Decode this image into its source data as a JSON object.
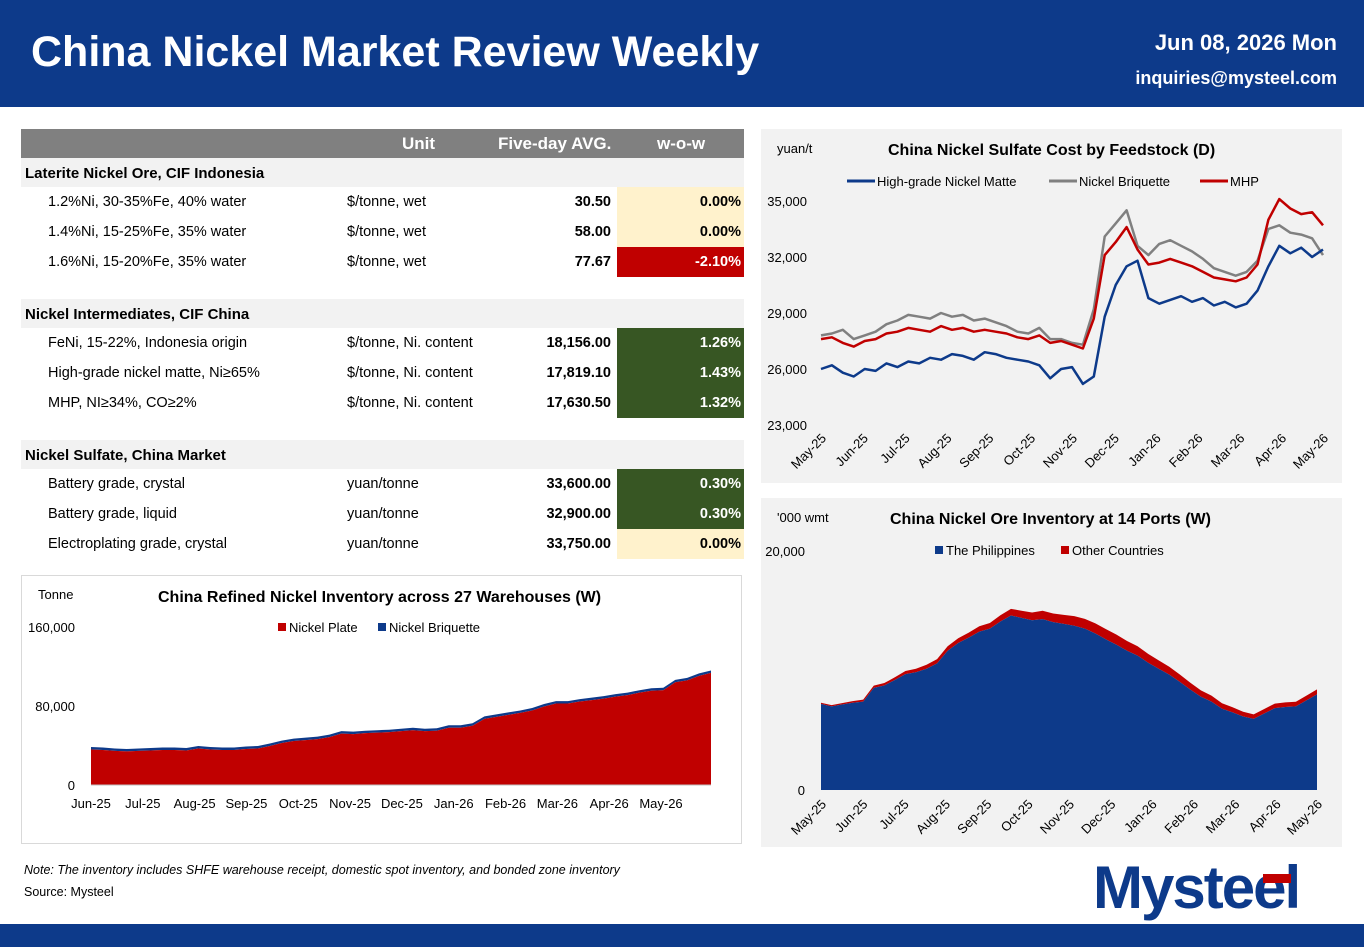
{
  "header": {
    "title": "China Nickel Market Review Weekly",
    "date": "Jun 08, 2026 Mon",
    "email": "inquiries@mysteel.com"
  },
  "table": {
    "columns": {
      "unit": "Unit",
      "avg": "Five-day AVG.",
      "wow": "w-o-w"
    },
    "sections": [
      {
        "title": "Laterite Nickel Ore, CIF Indonesia",
        "rows": [
          {
            "name": "1.2%Ni, 30-35%Fe, 40% water",
            "unit": "$/tonne, wet",
            "avg": "30.50",
            "wow": "0.00%",
            "status": "flat"
          },
          {
            "name": "1.4%Ni, 15-25%Fe, 35% water",
            "unit": "$/tonne, wet",
            "avg": "58.00",
            "wow": "0.00%",
            "status": "flat"
          },
          {
            "name": "1.6%Ni, 15-20%Fe, 35% water",
            "unit": "$/tonne, wet",
            "avg": "77.67",
            "wow": "-2.10%",
            "status": "down"
          }
        ]
      },
      {
        "title": "Nickel Intermediates, CIF China",
        "rows": [
          {
            "name": "FeNi, 15-22%, Indonesia origin",
            "unit": "$/tonne, Ni. content",
            "avg": "18,156.00",
            "wow": "1.26%",
            "status": "up"
          },
          {
            "name": "High-grade nickel matte, Ni≥65%",
            "unit": "$/tonne, Ni. content",
            "avg": "17,819.10",
            "wow": "1.43%",
            "status": "up"
          },
          {
            "name": "MHP, NI≥34%, CO≥2%",
            "unit": "$/tonne, Ni. content",
            "avg": "17,630.50",
            "wow": "1.32%",
            "status": "up"
          }
        ]
      },
      {
        "title": "Nickel Sulfate, China Market",
        "rows": [
          {
            "name": "Battery grade, crystal",
            "unit": "yuan/tonne",
            "avg": "33,600.00",
            "wow": "0.30%",
            "status": "up"
          },
          {
            "name": "Battery grade, liquid",
            "unit": "yuan/tonne",
            "avg": "32,900.00",
            "wow": "0.30%",
            "status": "up"
          },
          {
            "name": "Electroplating grade, crystal",
            "unit": "yuan/tonne",
            "avg": "33,750.00",
            "wow": "0.00%",
            "status": "flat"
          }
        ]
      }
    ]
  },
  "colors": {
    "navy": "#0d3a8a",
    "red": "#c00000",
    "grey": "#808080",
    "flat_bg": "#fff2cc",
    "up_bg": "#375623",
    "down_bg": "#c00000"
  },
  "chart_data": [
    {
      "id": "refined",
      "type": "area",
      "title": "China Refined Nickel Inventory across 27 Warehouses (W)",
      "ylabel": "Tonne",
      "ylim": [
        0,
        160000
      ],
      "yticks": [
        0,
        80000,
        160000
      ],
      "ytick_labels": [
        "0",
        "80,000",
        "160,000"
      ],
      "xtick_labels": [
        "Jun-25",
        "Jul-25",
        "Aug-25",
        "Sep-25",
        "Oct-25",
        "Nov-25",
        "Dec-25",
        "Jan-26",
        "Feb-26",
        "Mar-26",
        "Apr-26",
        "May-26"
      ],
      "legend": [
        "Nickel Plate",
        "Nickel Briquette"
      ],
      "legend_position": "top",
      "series": [
        {
          "name": "Nickel Plate",
          "values": [
            36000,
            35500,
            34500,
            34000,
            34500,
            35000,
            35500,
            35500,
            35000,
            37000,
            36000,
            35500,
            35500,
            36500,
            37000,
            39500,
            42500,
            44500,
            45500,
            46500,
            48500,
            52000,
            51500,
            52500,
            53000,
            53500,
            54500,
            55500,
            54500,
            55000,
            58000,
            58000,
            60000,
            67000,
            69000,
            71000,
            73000,
            75500,
            79500,
            82500,
            82500,
            84500,
            86000,
            87500,
            89500,
            91000,
            93500,
            95500,
            96000,
            104000,
            106000,
            110500,
            113500
          ]
        },
        {
          "name": "Nickel Briquette",
          "values": [
            2500,
            2500,
            2500,
            2500,
            2500,
            2500,
            2500,
            2500,
            2500,
            2500,
            2500,
            2500,
            2500,
            2500,
            2500,
            2500,
            2500,
            2500,
            2500,
            2500,
            2500,
            2500,
            2500,
            2500,
            2500,
            2500,
            2500,
            2500,
            2500,
            2500,
            2500,
            2500,
            2500,
            2500,
            2500,
            2500,
            2500,
            2500,
            2500,
            2500,
            2500,
            2500,
            2500,
            2500,
            2500,
            2500,
            2500,
            2500,
            2500,
            2500,
            2500,
            2500,
            2500
          ]
        }
      ]
    },
    {
      "id": "sulfate",
      "type": "line",
      "title": "China Nickel Sulfate Cost by Feedstock (D)",
      "ylabel": "yuan/t",
      "ylim": [
        23000,
        35000
      ],
      "yticks": [
        23000,
        26000,
        29000,
        32000,
        35000
      ],
      "ytick_labels": [
        "23,000",
        "26,000",
        "29,000",
        "32,000",
        "35,000"
      ],
      "xtick_labels": [
        "May-25",
        "Jun-25",
        "Jul-25",
        "Aug-25",
        "Sep-25",
        "Oct-25",
        "Nov-25",
        "Dec-25",
        "Jan-26",
        "Feb-26",
        "Mar-26",
        "Apr-26",
        "May-26"
      ],
      "legend": [
        "High-grade Nickel Matte",
        "Nickel Briquette",
        "MHP"
      ],
      "legend_position": "top",
      "series": [
        {
          "name": "High-grade Nickel Matte",
          "values": [
            26000,
            26200,
            25800,
            25600,
            26000,
            25900,
            26300,
            26100,
            26400,
            26300,
            26600,
            26500,
            26800,
            26700,
            26500,
            26900,
            26800,
            26600,
            26500,
            26400,
            26200,
            25500,
            26000,
            26100,
            25200,
            25600,
            28800,
            30500,
            31500,
            31800,
            29800,
            29500,
            29700,
            29900,
            29600,
            29800,
            29400,
            29600,
            29300,
            29500,
            30200,
            31500,
            32600,
            32200,
            32500,
            32000,
            32400
          ]
        },
        {
          "name": "Nickel Briquette",
          "values": [
            27800,
            27900,
            28100,
            27600,
            27800,
            28000,
            28400,
            28600,
            28900,
            28800,
            28700,
            29000,
            28800,
            28900,
            28600,
            28700,
            28500,
            28300,
            28000,
            27900,
            28200,
            27600,
            27600,
            27400,
            27300,
            29200,
            33100,
            33800,
            34500,
            32600,
            32100,
            32700,
            32900,
            32600,
            32300,
            31900,
            31400,
            31200,
            31000,
            31200,
            31800,
            33500,
            33700,
            33300,
            33200,
            33000,
            32100
          ]
        },
        {
          "name": "MHP",
          "values": [
            27600,
            27700,
            27400,
            27200,
            27500,
            27600,
            27900,
            28000,
            28200,
            28100,
            28000,
            28300,
            28100,
            28200,
            28000,
            28100,
            28000,
            27900,
            27700,
            27600,
            27800,
            27400,
            27500,
            27300,
            27100,
            28700,
            32100,
            32800,
            33600,
            32400,
            31600,
            31700,
            31900,
            31700,
            31500,
            31200,
            30900,
            30800,
            30700,
            30900,
            31600,
            34000,
            35100,
            34600,
            34300,
            34400,
            33700
          ]
        }
      ]
    },
    {
      "id": "ore",
      "type": "area",
      "title": "China Nickel Ore Inventory at 14 Ports (W)",
      "ylabel": "'000 wmt",
      "ylim": [
        0,
        20000
      ],
      "yticks": [
        0,
        20000
      ],
      "ytick_labels": [
        "0",
        "20,000"
      ],
      "xtick_labels": [
        "May-25",
        "Jun-25",
        "Jul-25",
        "Aug-25",
        "Sep-25",
        "Oct-25",
        "Nov-25",
        "Dec-25",
        "Jan-26",
        "Feb-26",
        "Mar-26",
        "Apr-26",
        "May-26"
      ],
      "legend": [
        "The Philippines",
        "Other Countries"
      ],
      "legend_position": "top",
      "series": [
        {
          "name": "The Philippines",
          "values": [
            7200,
            7000,
            7150,
            7300,
            7400,
            8550,
            8750,
            9200,
            9700,
            9850,
            10150,
            10600,
            11650,
            12300,
            12750,
            13250,
            13500,
            14100,
            14600,
            14400,
            14200,
            14300,
            14050,
            13900,
            13750,
            13500,
            13100,
            12600,
            12150,
            11650,
            11250,
            10650,
            10150,
            9650,
            9050,
            8400,
            7800,
            7400,
            6800,
            6500,
            6150,
            5950,
            6400,
            6850,
            6950,
            7000,
            7500,
            8000
          ]
        },
        {
          "name": "Other Countries",
          "values": [
            100,
            100,
            120,
            140,
            160,
            180,
            200,
            230,
            260,
            300,
            330,
            350,
            380,
            400,
            420,
            450,
            470,
            520,
            560,
            600,
            650,
            700,
            720,
            760,
            800,
            820,
            840,
            860,
            850,
            820,
            780,
            740,
            700,
            660,
            620,
            580,
            540,
            500,
            460,
            420,
            400,
            380,
            380,
            380,
            380,
            390,
            400,
            420
          ]
        }
      ]
    }
  ],
  "note": "Note: The inventory includes SHFE warehouse receipt, domestic spot inventory, and bonded zone inventory",
  "source": "Source: Mysteel",
  "logo_text": "Mysteel"
}
